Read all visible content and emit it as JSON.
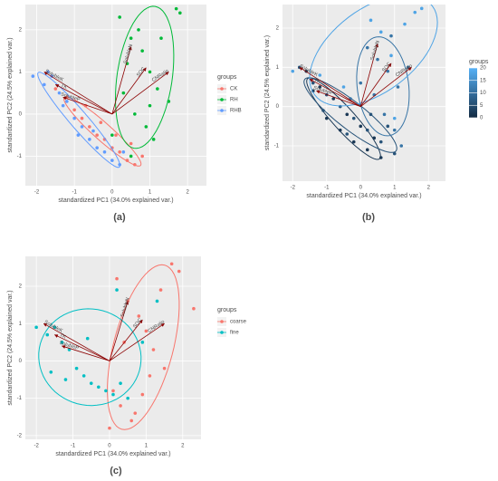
{
  "chart_data": [
    {
      "type": "biplot",
      "panel_label": "(a)",
      "xlabel": "standardized PC1 (34.0% explained var.)",
      "ylabel": "standardized PC2 (24.5% explained var.)",
      "xlim": [
        -2.3,
        2.5
      ],
      "ylim": [
        -1.7,
        2.6
      ],
      "xticks": [
        -2,
        -1,
        0,
        1,
        2
      ],
      "yticks": [
        -1,
        0,
        1,
        2
      ],
      "grid": true,
      "legend_title": "groups",
      "series": [
        {
          "name": "CK",
          "color": "#F8766D",
          "x": [
            -1.5,
            -1.2,
            -1,
            -0.8,
            -0.6,
            -0.4,
            -0.2,
            0,
            0.2,
            0.4,
            0.6,
            0.8,
            -0.3,
            0.1,
            0.5,
            -0.7
          ],
          "y": [
            0.6,
            0.4,
            0.1,
            -0.1,
            -0.3,
            -0.5,
            -0.6,
            -0.8,
            -0.9,
            -1.1,
            -1.2,
            -1.0,
            -0.2,
            -0.5,
            -0.7,
            0.2
          ]
        },
        {
          "name": "RH",
          "color": "#00BA38",
          "x": [
            0.2,
            0.5,
            0.8,
            1.0,
            1.2,
            1.5,
            0.3,
            0.6,
            0.9,
            1.1,
            1.7,
            1.8,
            0.4,
            0.7,
            0.0,
            1.3,
            0.5,
            1.0
          ],
          "y": [
            2.3,
            1.8,
            1.5,
            1.0,
            0.6,
            0.3,
            0.5,
            0.0,
            -0.3,
            -0.6,
            2.5,
            2.4,
            1.2,
            2.0,
            -0.5,
            1.8,
            -1.0,
            0.2
          ]
        },
        {
          "name": "RHB",
          "color": "#619CFF",
          "x": [
            -2.1,
            -1.8,
            -1.6,
            -1.4,
            -1.2,
            -1.0,
            -0.8,
            -0.6,
            -0.4,
            -0.2,
            0.0,
            0.2,
            -1.7,
            -1.3,
            -0.9,
            -0.5,
            0.3
          ],
          "y": [
            0.9,
            0.7,
            0.9,
            0.5,
            0.3,
            -0.1,
            -0.3,
            -0.6,
            -0.8,
            -0.9,
            -1.1,
            -1.2,
            1.0,
            0.2,
            -0.5,
            -0.4,
            -0.9
          ]
        }
      ],
      "arrow_color": "#8B0000",
      "arrows": [
        {
          "label": "SolubleN",
          "x": 0.5,
          "y": 1.6
        },
        {
          "label": "SOC",
          "x": 0.9,
          "y": 1.1
        },
        {
          "label": "CNRatio",
          "x": 1.5,
          "y": 1.0
        },
        {
          "label": "SolubleK",
          "x": -1.8,
          "y": 1.0
        },
        {
          "label": "TK",
          "x": -1.5,
          "y": 0.7
        },
        {
          "label": "SolubleP",
          "x": -1.3,
          "y": 0.4
        }
      ]
    },
    {
      "type": "biplot",
      "panel_label": "(b)",
      "xlabel": "standardized PC1 (34.0% explained var.)",
      "ylabel": "standardized PC2 (24.5% explained var.)",
      "xlim": [
        -2.3,
        2.5
      ],
      "ylim": [
        -1.9,
        2.6
      ],
      "xticks": [
        -2,
        -1,
        0,
        1,
        2
      ],
      "yticks": [
        -1,
        0,
        1,
        2
      ],
      "grid": true,
      "legend_title": "groups",
      "color_low": "#132B43",
      "color_high": "#56B1F7",
      "glim": [
        0,
        20
      ],
      "gticks": [
        0,
        5,
        10,
        15,
        20
      ],
      "series": [
        {
          "group": 2,
          "x": [
            -1.6,
            -1.2,
            -0.8,
            -0.4,
            0.0,
            0.4,
            -1.0,
            -0.6,
            -0.2,
            0.2,
            0.6,
            -1.4
          ],
          "y": [
            0.9,
            0.5,
            0.2,
            -0.2,
            -0.5,
            -0.8,
            -0.3,
            -0.6,
            -0.9,
            -1.1,
            -1.3,
            0.4
          ]
        },
        {
          "group": 6,
          "x": [
            -1.8,
            -1.4,
            -1.0,
            -0.6,
            -0.2,
            0.2,
            0.6,
            1.0,
            -0.4,
            0.3,
            0.8,
            -1.1
          ],
          "y": [
            1.0,
            0.6,
            0.3,
            0.0,
            -0.3,
            -0.6,
            -0.9,
            -1.2,
            -0.7,
            -0.2,
            -0.5,
            -0.1
          ]
        },
        {
          "group": 11,
          "x": [
            0.2,
            0.5,
            0.8,
            1.1,
            1.4,
            0.4,
            0.7,
            1.0,
            0.0,
            1.2,
            -0.3,
            0.9
          ],
          "y": [
            1.5,
            1.2,
            0.9,
            0.5,
            1.0,
            0.3,
            -0.2,
            -0.6,
            0.6,
            -1.0,
            0.2,
            1.8
          ]
        },
        {
          "group": 18,
          "x": [
            -2.0,
            0.3,
            0.6,
            1.3,
            1.6,
            1.8,
            0.9,
            -0.5,
            -1.2,
            1.0
          ],
          "y": [
            0.9,
            2.2,
            1.9,
            2.1,
            2.4,
            2.5,
            1.3,
            0.5,
            0.8,
            -0.3
          ]
        }
      ],
      "arrow_color": "#8B0000",
      "arrows": [
        {
          "label": "SolubleN",
          "x": 0.5,
          "y": 1.6
        },
        {
          "label": "SOC",
          "x": 0.9,
          "y": 1.1
        },
        {
          "label": "CNRatio",
          "x": 1.5,
          "y": 1.0
        },
        {
          "label": "SolubleK",
          "x": -1.8,
          "y": 1.0
        },
        {
          "label": "TK",
          "x": -1.5,
          "y": 0.7
        },
        {
          "label": "SolubleP",
          "x": -1.3,
          "y": 0.4
        }
      ]
    },
    {
      "type": "biplot",
      "panel_label": "(c)",
      "xlabel": "standardized PC1 (34.0% explained var.)",
      "ylabel": "standardized PC2 (24.5% explained var.)",
      "xlim": [
        -2.3,
        2.5
      ],
      "ylim": [
        -2.1,
        2.8
      ],
      "xticks": [
        -2,
        -1,
        0,
        1,
        2
      ],
      "yticks": [
        -2,
        -1,
        0,
        1,
        2
      ],
      "grid": true,
      "legend_title": "groups",
      "series": [
        {
          "name": "coarse",
          "color": "#F8766D",
          "x": [
            0.2,
            0.5,
            0.8,
            1.0,
            1.2,
            1.5,
            1.7,
            1.9,
            0.3,
            0.6,
            0.9,
            1.1,
            0.4,
            0.7,
            1.4,
            0.1,
            0.0,
            2.3
          ],
          "y": [
            2.2,
            1.6,
            1.2,
            0.8,
            0.3,
            -0.2,
            2.6,
            2.4,
            -1.2,
            -1.6,
            -0.9,
            -0.4,
            0.5,
            -1.4,
            1.9,
            -0.8,
            -1.8,
            1.4
          ]
        },
        {
          "name": "fine",
          "color": "#00BFC4",
          "x": [
            -2.0,
            -1.7,
            -1.5,
            -1.3,
            -1.1,
            -0.9,
            -0.7,
            -0.5,
            -0.3,
            -0.1,
            0.1,
            0.3,
            0.5,
            -1.6,
            -1.2,
            0.2,
            0.9,
            1.3,
            -0.6
          ],
          "y": [
            0.9,
            0.7,
            0.9,
            0.5,
            0.3,
            -0.2,
            -0.4,
            -0.6,
            -0.7,
            -0.8,
            -0.9,
            -0.6,
            -1.0,
            -0.3,
            -0.5,
            1.9,
            0.5,
            1.6,
            0.6
          ]
        }
      ],
      "arrow_color": "#8B0000",
      "arrows": [
        {
          "label": "SolubleN",
          "x": 0.5,
          "y": 1.6
        },
        {
          "label": "SOC",
          "x": 0.9,
          "y": 1.1
        },
        {
          "label": "CNRatio",
          "x": 1.5,
          "y": 1.0
        },
        {
          "label": "SolubleK",
          "x": -1.8,
          "y": 1.0
        },
        {
          "label": "TK",
          "x": -1.5,
          "y": 0.7
        },
        {
          "label": "SolubleP",
          "x": -1.3,
          "y": 0.4
        }
      ]
    }
  ]
}
